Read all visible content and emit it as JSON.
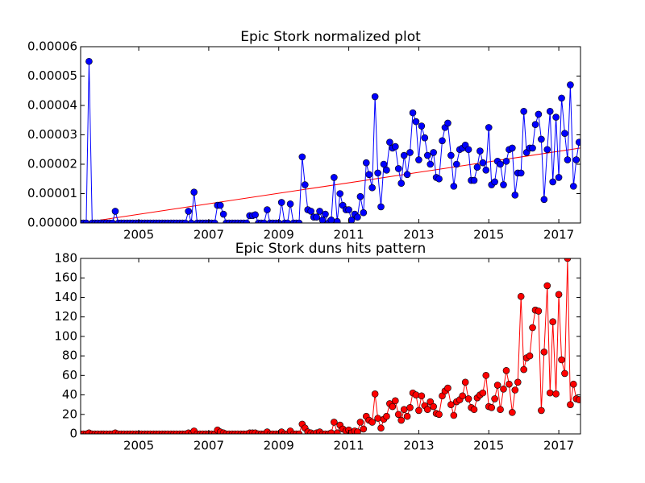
{
  "chart_data": [
    {
      "type": "line",
      "title": "Epic Stork normalized plot",
      "color": "#0000ff",
      "marker_color": "#0000ff",
      "x": [
        2003.33,
        2003.42,
        2003.5,
        2003.58,
        2003.67,
        2003.75,
        2003.83,
        2003.92,
        2004,
        2004.08,
        2004.17,
        2004.25,
        2004.33,
        2004.42,
        2004.5,
        2004.58,
        2004.67,
        2004.75,
        2004.83,
        2004.92,
        2005,
        2005.08,
        2005.17,
        2005.25,
        2005.33,
        2005.42,
        2005.5,
        2005.58,
        2005.67,
        2005.75,
        2005.83,
        2005.92,
        2006,
        2006.08,
        2006.17,
        2006.25,
        2006.33,
        2006.42,
        2006.5,
        2006.58,
        2006.67,
        2006.75,
        2006.83,
        2006.92,
        2007,
        2007.08,
        2007.17,
        2007.25,
        2007.33,
        2007.42,
        2007.5,
        2007.58,
        2007.67,
        2007.75,
        2007.83,
        2007.92,
        2008,
        2008.08,
        2008.17,
        2008.25,
        2008.33,
        2008.42,
        2008.5,
        2008.58,
        2008.67,
        2008.75,
        2008.83,
        2008.92,
        2009,
        2009.08,
        2009.17,
        2009.25,
        2009.33,
        2009.42,
        2009.5,
        2009.58,
        2009.67,
        2009.75,
        2009.83,
        2009.92,
        2010,
        2010.08,
        2010.17,
        2010.25,
        2010.33,
        2010.42,
        2010.5,
        2010.58,
        2010.67,
        2010.75,
        2010.83,
        2010.92,
        2011,
        2011.08,
        2011.17,
        2011.25,
        2011.33,
        2011.42,
        2011.5,
        2011.58,
        2011.67,
        2011.75,
        2011.83,
        2011.92,
        2012,
        2012.08,
        2012.17,
        2012.25,
        2012.33,
        2012.42,
        2012.5,
        2012.58,
        2012.67,
        2012.75,
        2012.83,
        2012.92,
        2013,
        2013.08,
        2013.17,
        2013.25,
        2013.33,
        2013.42,
        2013.5,
        2013.58,
        2013.67,
        2013.75,
        2013.83,
        2013.92,
        2014,
        2014.08,
        2014.17,
        2014.25,
        2014.33,
        2014.42,
        2014.5,
        2014.58,
        2014.67,
        2014.75,
        2014.83,
        2014.92,
        2015,
        2015.08,
        2015.17,
        2015.25,
        2015.33,
        2015.42,
        2015.5,
        2015.58,
        2015.67,
        2015.75,
        2015.83,
        2015.92,
        2016,
        2016.08,
        2016.17,
        2016.25,
        2016.33,
        2016.42,
        2016.5,
        2016.58,
        2016.67,
        2016.75,
        2016.83,
        2016.92,
        2017,
        2017.08,
        2017.17,
        2017.25,
        2017.33,
        2017.42,
        2017.5,
        2017.58
      ],
      "values": [
        0,
        0,
        0,
        5.5e-05,
        0,
        0,
        0,
        0,
        0,
        0,
        0,
        0,
        4e-06,
        0,
        0,
        0,
        0,
        0,
        0,
        0,
        0,
        0,
        0,
        0,
        0,
        0,
        0,
        0,
        0,
        0,
        0,
        0,
        0,
        0,
        0,
        0,
        0,
        4e-06,
        0,
        1.05e-05,
        0,
        0,
        0,
        0,
        0,
        0,
        0,
        6e-06,
        6e-06,
        3e-06,
        0,
        0,
        0,
        0,
        0,
        0,
        0,
        0,
        2.5e-06,
        2.5e-06,
        2.8e-06,
        0,
        0,
        0,
        4.5e-06,
        0,
        0,
        0,
        0,
        7e-06,
        0,
        0,
        6.5e-06,
        0,
        0,
        0,
        2.25e-05,
        1.3e-05,
        4.5e-06,
        4e-06,
        2e-06,
        2e-06,
        4e-06,
        1e-06,
        3e-06,
        0,
        1e-06,
        1.55e-05,
        5e-07,
        1e-05,
        6e-06,
        4.5e-06,
        4.5e-06,
        1e-06,
        3e-06,
        2e-06,
        9e-06,
        3.5e-06,
        2.05e-05,
        1.65e-05,
        1.2e-05,
        4.3e-05,
        1.7e-05,
        5.5e-06,
        2e-05,
        1.8e-05,
        2.75e-05,
        2.55e-05,
        2.6e-05,
        1.85e-05,
        1.35e-05,
        2.3e-05,
        1.65e-05,
        2.4e-05,
        3.75e-05,
        3.45e-05,
        2.15e-05,
        3.3e-05,
        2.9e-05,
        2.3e-05,
        2e-05,
        2.4e-05,
        1.55e-05,
        1.5e-05,
        2.8e-05,
        3.25e-05,
        3.4e-05,
        2.3e-05,
        1.25e-05,
        2e-05,
        2.5e-05,
        2.55e-05,
        2.65e-05,
        2.5e-05,
        1.45e-05,
        1.45e-05,
        1.9e-05,
        2.45e-05,
        2.05e-05,
        1.8e-05,
        3.25e-05,
        1.3e-05,
        1.4e-05,
        2.1e-05,
        2e-05,
        1.3e-05,
        2.1e-05,
        2.5e-05,
        2.55e-05,
        9.5e-06,
        1.7e-05,
        1.7e-05,
        3.8e-05,
        2.4e-05,
        2.55e-05,
        2.55e-05,
        3.35e-05,
        3.7e-05,
        2.85e-05,
        8e-06,
        2.5e-05,
        3.8e-05,
        1.4e-05,
        3.6e-05,
        1.55e-05,
        4.25e-05,
        3.05e-05,
        2.15e-05,
        4.7e-05,
        1.25e-05,
        2.15e-05,
        2.75e-05
      ],
      "trend": {
        "x": [
          2003.34,
          2017.62
        ],
        "values": [
          0,
          2.55e-05
        ],
        "color": "#ff0000"
      },
      "xlim": [
        2003.34,
        2017.62
      ],
      "xticks": [
        2005,
        2007,
        2009,
        2011,
        2013,
        2015,
        2017
      ],
      "ylim": [
        0,
        6e-05
      ],
      "yticks": [
        {
          "value": 0,
          "label": "0.00000"
        },
        {
          "value": 1e-05,
          "label": "0.00001"
        },
        {
          "value": 2e-05,
          "label": "0.00002"
        },
        {
          "value": 3e-05,
          "label": "0.00003"
        },
        {
          "value": 4e-05,
          "label": "0.00004"
        },
        {
          "value": 5e-05,
          "label": "0.00005"
        },
        {
          "value": 6e-05,
          "label": "0.00006"
        }
      ]
    },
    {
      "type": "line",
      "title": "Epic Stork duns hits pattern",
      "color": "#ff0000",
      "marker_color": "#ff0000",
      "x": [
        2003.33,
        2003.42,
        2003.5,
        2003.58,
        2003.67,
        2003.75,
        2003.83,
        2003.92,
        2004,
        2004.08,
        2004.17,
        2004.25,
        2004.33,
        2004.42,
        2004.5,
        2004.58,
        2004.67,
        2004.75,
        2004.83,
        2004.92,
        2005,
        2005.08,
        2005.17,
        2005.25,
        2005.33,
        2005.42,
        2005.5,
        2005.58,
        2005.67,
        2005.75,
        2005.83,
        2005.92,
        2006,
        2006.08,
        2006.17,
        2006.25,
        2006.33,
        2006.42,
        2006.5,
        2006.58,
        2006.67,
        2006.75,
        2006.83,
        2006.92,
        2007,
        2007.08,
        2007.17,
        2007.25,
        2007.33,
        2007.42,
        2007.5,
        2007.58,
        2007.67,
        2007.75,
        2007.83,
        2007.92,
        2008,
        2008.08,
        2008.17,
        2008.25,
        2008.33,
        2008.42,
        2008.5,
        2008.58,
        2008.67,
        2008.75,
        2008.83,
        2008.92,
        2009,
        2009.08,
        2009.17,
        2009.25,
        2009.33,
        2009.42,
        2009.5,
        2009.58,
        2009.67,
        2009.75,
        2009.83,
        2009.92,
        2010,
        2010.08,
        2010.17,
        2010.25,
        2010.33,
        2010.42,
        2010.5,
        2010.58,
        2010.67,
        2010.75,
        2010.83,
        2010.92,
        2011,
        2011.08,
        2011.17,
        2011.25,
        2011.33,
        2011.42,
        2011.5,
        2011.58,
        2011.67,
        2011.75,
        2011.83,
        2011.92,
        2012,
        2012.08,
        2012.17,
        2012.25,
        2012.33,
        2012.42,
        2012.5,
        2012.58,
        2012.67,
        2012.75,
        2012.83,
        2012.92,
        2013,
        2013.08,
        2013.17,
        2013.25,
        2013.33,
        2013.42,
        2013.5,
        2013.58,
        2013.67,
        2013.75,
        2013.83,
        2013.92,
        2014,
        2014.08,
        2014.17,
        2014.25,
        2014.33,
        2014.42,
        2014.5,
        2014.58,
        2014.67,
        2014.75,
        2014.83,
        2014.92,
        2015,
        2015.08,
        2015.17,
        2015.25,
        2015.33,
        2015.42,
        2015.5,
        2015.58,
        2015.67,
        2015.75,
        2015.83,
        2015.92,
        2016,
        2016.08,
        2016.17,
        2016.25,
        2016.33,
        2016.42,
        2016.5,
        2016.58,
        2016.67,
        2016.75,
        2016.83,
        2016.92,
        2017,
        2017.08,
        2017.17,
        2017.25,
        2017.33,
        2017.42,
        2017.5,
        2017.58
      ],
      "values": [
        0,
        0,
        0,
        1,
        0,
        0,
        0,
        0,
        0,
        0,
        0,
        0,
        1,
        0,
        0,
        0,
        0,
        0,
        0,
        0,
        0,
        0,
        0,
        0,
        0,
        0,
        0,
        0,
        0,
        0,
        0,
        0,
        0,
        0,
        0,
        0,
        0,
        1,
        0,
        3,
        0,
        0,
        0,
        0,
        0,
        0,
        0,
        4,
        2,
        1,
        0,
        0,
        0,
        0,
        0,
        0,
        0,
        0,
        1,
        1,
        1,
        0,
        0,
        0,
        2,
        0,
        0,
        0,
        0,
        2,
        0,
        0,
        3,
        0,
        0,
        0,
        10,
        6,
        2,
        1,
        0,
        1,
        2,
        0,
        0,
        0,
        1,
        12,
        1,
        9,
        5,
        3,
        4,
        1,
        3,
        2,
        12,
        5,
        18,
        14,
        12,
        41,
        16,
        6,
        15,
        18,
        31,
        28,
        34,
        20,
        14,
        25,
        18,
        27,
        42,
        40,
        24,
        39,
        29,
        25,
        33,
        28,
        21,
        20,
        39,
        44,
        47,
        30,
        19,
        33,
        35,
        39,
        53,
        36,
        27,
        25,
        37,
        40,
        42,
        60,
        28,
        27,
        36,
        50,
        25,
        46,
        65,
        51,
        22,
        45,
        53,
        141,
        66,
        78,
        80,
        109,
        127,
        126,
        24,
        84,
        152,
        42,
        115,
        41,
        143,
        76,
        62,
        180,
        30,
        51,
        36,
        35
      ],
      "xlim": [
        2003.34,
        2017.62
      ],
      "xticks": [
        2005,
        2007,
        2009,
        2011,
        2013,
        2015,
        2017
      ],
      "ylim": [
        0,
        180
      ],
      "yticks": [
        0,
        20,
        40,
        60,
        80,
        100,
        120,
        140,
        160,
        180
      ]
    }
  ]
}
